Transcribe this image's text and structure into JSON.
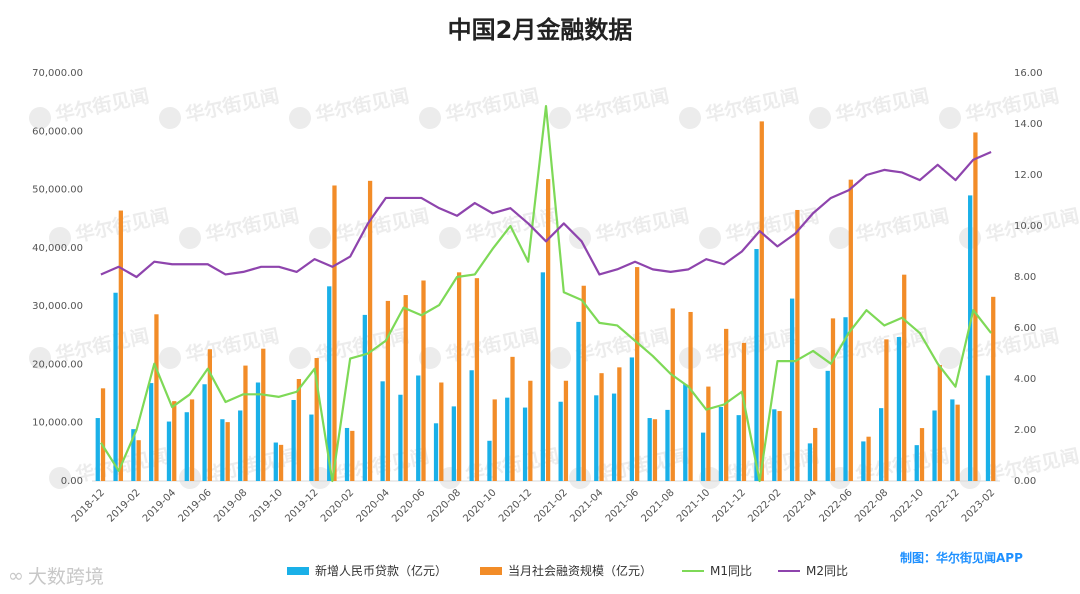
{
  "chart_data": {
    "title": "中国2月金融数据",
    "type": "bar+line",
    "categories": [
      "2018-12",
      "2019-01",
      "2019-02",
      "2019-03",
      "2019-04",
      "2019-05",
      "2019-06",
      "2019-07",
      "2019-08",
      "2019-09",
      "2019-10",
      "2019-11",
      "2019-12",
      "2020-01",
      "2020-02",
      "2020-03",
      "2020-04",
      "2020-05",
      "2020-06",
      "2020-07",
      "2020-08",
      "2020-09",
      "2020-10",
      "2020-11",
      "2020-12",
      "2021-01",
      "2021-02",
      "2021-03",
      "2021-04",
      "2021-05",
      "2021-06",
      "2021-07",
      "2021-08",
      "2021-09",
      "2021-10",
      "2021-11",
      "2021-12",
      "2022-01",
      "2022-02",
      "2022-03",
      "2022-04",
      "2022-05",
      "2022-06",
      "2022-07",
      "2022-08",
      "2022-09",
      "2022-10",
      "2022-11",
      "2022-12",
      "2023-01",
      "2023-02"
    ],
    "x_tick_labels": [
      "2018-12",
      "2019-02",
      "2019-04",
      "2019-06",
      "2019-08",
      "2019-10",
      "2019-12",
      "2020-02",
      "2020-04",
      "2020-06",
      "2020-08",
      "2020-10",
      "2020-12",
      "2021-02",
      "2021-04",
      "2021-06",
      "2021-08",
      "2021-10",
      "2021-12",
      "2022-02",
      "2022-04",
      "2022-06",
      "2022-08",
      "2022-10",
      "2022-12",
      "2023-02"
    ],
    "y_left": {
      "ylim": [
        0,
        70000
      ],
      "ticks": [
        "0.00",
        "10,000.00",
        "20,000.00",
        "30,000.00",
        "40,000.00",
        "50,000.00",
        "60,000.00",
        "70,000.00"
      ]
    },
    "y_right": {
      "ylim": [
        0,
        16
      ],
      "ticks": [
        "0.00",
        "2.00",
        "4.00",
        "6.00",
        "8.00",
        "10.00",
        "12.00",
        "14.00",
        "16.00"
      ]
    },
    "series": [
      {
        "name": "新增人民币贷款（亿元）",
        "kind": "bar",
        "axis": "left",
        "color": "#1ab0e8",
        "values": [
          10800,
          32300,
          8900,
          16800,
          10200,
          11800,
          16600,
          10600,
          12100,
          16900,
          6600,
          13900,
          11400,
          33400,
          9100,
          28500,
          17100,
          14800,
          18100,
          9900,
          12800,
          19000,
          6900,
          14300,
          12600,
          35800,
          13600,
          27300,
          14700,
          15000,
          21200,
          10800,
          12200,
          16600,
          8300,
          12700,
          11300,
          39800,
          12300,
          31300,
          6454,
          18900,
          28100,
          6790,
          12500,
          24700,
          6152,
          12100,
          14000,
          49000,
          18100
        ]
      },
      {
        "name": "当月社会融资规模（亿元）",
        "kind": "bar",
        "axis": "left",
        "color": "#f28c28",
        "values": [
          15900,
          46400,
          7000,
          28600,
          13700,
          14000,
          22600,
          10100,
          19800,
          22700,
          6200,
          17500,
          21100,
          50700,
          8600,
          51500,
          30900,
          31900,
          34400,
          16900,
          35800,
          34800,
          14000,
          21300,
          17200,
          51800,
          17200,
          33500,
          18500,
          19500,
          36700,
          10600,
          29600,
          29000,
          16200,
          26100,
          23700,
          61700,
          12000,
          46500,
          9102,
          27900,
          51700,
          7600,
          24300,
          35400,
          9079,
          19900,
          13100,
          59800,
          31600
        ]
      },
      {
        "name": "M1同比",
        "kind": "line",
        "axis": "right",
        "color": "#7ed957",
        "values": [
          1.5,
          0.4,
          2.0,
          4.6,
          2.9,
          3.4,
          4.4,
          3.1,
          3.4,
          3.4,
          3.3,
          3.5,
          4.4,
          0.0,
          4.8,
          5.0,
          5.5,
          6.8,
          6.5,
          6.9,
          8.0,
          8.1,
          9.1,
          10.0,
          8.6,
          14.7,
          7.4,
          7.1,
          6.2,
          6.1,
          5.5,
          4.9,
          4.2,
          3.7,
          2.8,
          3.0,
          3.5,
          -1.9,
          4.7,
          4.7,
          5.1,
          4.6,
          5.8,
          6.7,
          6.1,
          6.4,
          5.8,
          4.6,
          3.7,
          6.7,
          5.8
        ]
      },
      {
        "name": "M2同比",
        "kind": "line",
        "axis": "right",
        "color": "#8e44ad",
        "values": [
          8.1,
          8.4,
          8.0,
          8.6,
          8.5,
          8.5,
          8.5,
          8.1,
          8.2,
          8.4,
          8.4,
          8.2,
          8.7,
          8.4,
          8.8,
          10.1,
          11.1,
          11.1,
          11.1,
          10.7,
          10.4,
          10.9,
          10.5,
          10.7,
          10.1,
          9.4,
          10.1,
          9.4,
          8.1,
          8.3,
          8.6,
          8.3,
          8.2,
          8.3,
          8.7,
          8.5,
          9.0,
          9.8,
          9.2,
          9.7,
          10.5,
          11.1,
          11.4,
          12.0,
          12.2,
          12.1,
          11.8,
          12.4,
          11.8,
          12.6,
          12.9
        ]
      }
    ],
    "legend_position": "bottom",
    "grid": false
  },
  "credit": "制图：华尔街见闻APP",
  "watermark_text": "华尔街见闻",
  "footer_watermark": "大数跨境"
}
